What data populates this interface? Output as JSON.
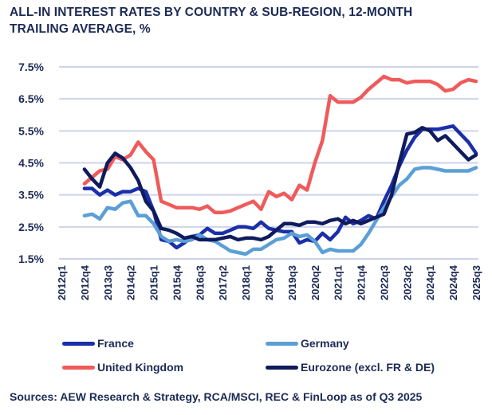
{
  "chart_data": {
    "type": "line",
    "title": "ALL-IN INTEREST RATES BY COUNTRY & SUB-REGION, 12-MONTH TRAILING AVERAGE, %",
    "xlabel": "",
    "ylabel": "",
    "ylim": [
      1.5,
      7.5
    ],
    "yticks": [
      7.5,
      6.5,
      5.5,
      4.5,
      3.5,
      2.5,
      1.5
    ],
    "ytick_labels": [
      "7.5%",
      "6.5%",
      "5.5%",
      "4.5%",
      "3.5%",
      "2.5%",
      "1.5%"
    ],
    "grid": true,
    "x_range": [
      "2012q1",
      "2025q3"
    ],
    "xtick_labels": [
      "2012q1",
      "2012q4",
      "2013q3",
      "2014q2",
      "2015q1",
      "2015q4",
      "2016q3",
      "2017q2",
      "2018q1",
      "2018q4",
      "2019q3",
      "2020q2",
      "2021q1",
      "2021q4",
      "2022q3",
      "2023q2",
      "2024q1",
      "2024q4",
      "2025q3"
    ],
    "x": [
      "2012q4",
      "2013q1",
      "2013q2",
      "2013q3",
      "2013q4",
      "2014q1",
      "2014q2",
      "2014q3",
      "2014q4",
      "2015q1",
      "2015q2",
      "2015q3",
      "2015q4",
      "2016q1",
      "2016q2",
      "2016q3",
      "2016q4",
      "2017q1",
      "2017q2",
      "2017q3",
      "2017q4",
      "2018q1",
      "2018q2",
      "2018q3",
      "2018q4",
      "2019q1",
      "2019q2",
      "2019q3",
      "2019q4",
      "2020q1",
      "2020q2",
      "2020q3",
      "2020q4",
      "2021q1",
      "2021q2",
      "2021q3",
      "2021q4",
      "2022q1",
      "2022q2",
      "2022q3",
      "2022q4",
      "2023q1",
      "2023q2",
      "2023q3",
      "2023q4",
      "2024q1",
      "2024q2",
      "2024q3",
      "2024q4",
      "2025q1",
      "2025q2",
      "2025q3"
    ],
    "legend_position": "bottom",
    "series": [
      {
        "name": "France",
        "color": "#1a2fa8",
        "values": [
          3.7,
          3.7,
          3.5,
          3.65,
          3.5,
          3.6,
          3.6,
          3.7,
          3.6,
          3.0,
          2.1,
          2.05,
          1.85,
          2.0,
          2.2,
          2.25,
          2.45,
          2.3,
          2.3,
          2.4,
          2.5,
          2.5,
          2.45,
          2.65,
          2.45,
          2.4,
          2.35,
          2.35,
          2.0,
          2.1,
          2.05,
          2.3,
          2.1,
          2.35,
          2.8,
          2.6,
          2.7,
          2.85,
          2.75,
          3.3,
          3.8,
          4.4,
          4.9,
          5.3,
          5.55,
          5.55,
          5.55,
          5.6,
          5.65,
          5.4,
          5.15,
          4.8
        ]
      },
      {
        "name": "Germany",
        "color": "#5b9fd6",
        "values": [
          2.85,
          2.9,
          2.75,
          3.1,
          3.05,
          3.25,
          3.3,
          2.85,
          2.85,
          2.6,
          2.2,
          2.05,
          2.1,
          2.05,
          2.1,
          2.25,
          2.1,
          2.05,
          1.9,
          1.75,
          1.7,
          1.65,
          1.8,
          1.8,
          1.95,
          2.1,
          2.15,
          2.3,
          2.2,
          2.25,
          2.05,
          1.7,
          1.8,
          1.75,
          1.75,
          1.75,
          1.95,
          2.3,
          2.7,
          3.1,
          3.45,
          3.8,
          4.0,
          4.3,
          4.35,
          4.35,
          4.3,
          4.25,
          4.25,
          4.25,
          4.25,
          4.35
        ]
      },
      {
        "name": "United Kingdom",
        "color": "#ef5b5b",
        "values": [
          3.85,
          4.05,
          4.25,
          4.3,
          4.7,
          4.6,
          4.75,
          5.15,
          4.85,
          4.6,
          3.3,
          3.2,
          3.1,
          3.1,
          3.1,
          3.05,
          3.15,
          2.95,
          2.95,
          3.0,
          3.1,
          3.2,
          3.3,
          3.05,
          3.6,
          3.45,
          3.55,
          3.35,
          3.8,
          3.65,
          4.5,
          5.2,
          6.6,
          6.4,
          6.4,
          6.4,
          6.55,
          6.8,
          7.0,
          7.2,
          7.1,
          7.1,
          7.0,
          7.05,
          7.05,
          7.05,
          6.95,
          6.75,
          6.8,
          7.0,
          7.1,
          7.05
        ]
      },
      {
        "name": "Eurozone (excl. FR & DE)",
        "color": "#0f1b5c",
        "values": [
          4.3,
          4.0,
          3.75,
          4.5,
          4.8,
          4.65,
          4.35,
          3.95,
          3.3,
          3.0,
          2.45,
          2.4,
          2.3,
          2.15,
          2.2,
          2.1,
          2.1,
          2.1,
          2.15,
          2.2,
          2.1,
          2.15,
          2.15,
          2.1,
          2.2,
          2.4,
          2.6,
          2.6,
          2.55,
          2.65,
          2.65,
          2.6,
          2.7,
          2.75,
          2.6,
          2.7,
          2.6,
          2.7,
          2.8,
          2.9,
          3.5,
          4.5,
          5.4,
          5.45,
          5.6,
          5.5,
          5.2,
          5.35,
          5.1,
          4.85,
          4.6,
          4.75
        ]
      }
    ],
    "source": "Sources: AEW Research & Strategy, RCA/MSCI, REC & FinLoop as of Q3 2025"
  }
}
